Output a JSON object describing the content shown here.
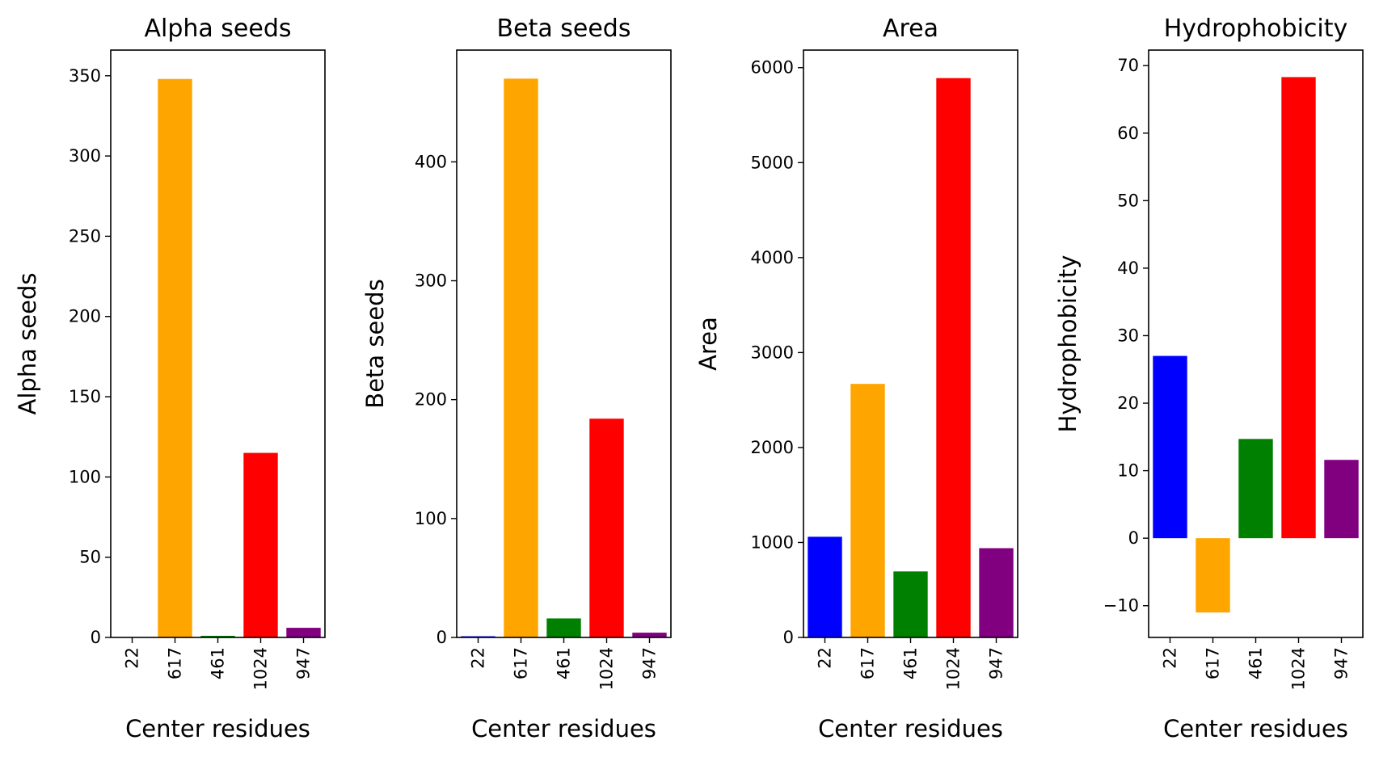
{
  "colors": {
    "bar_colors": [
      "#0000ff",
      "#ffa500",
      "#008000",
      "#ff0000",
      "#800080"
    ],
    "axes": "#000000",
    "background": "#ffffff"
  },
  "chart_data": [
    {
      "type": "bar",
      "title": "Alpha seeds",
      "xlabel": "Center residues",
      "ylabel": "Alpha seeds",
      "categories": [
        "22",
        "617",
        "461",
        "1024",
        "947"
      ],
      "values": [
        0,
        348,
        1,
        115,
        6
      ],
      "ylim": [
        0,
        366
      ],
      "yticks": [
        0,
        50,
        100,
        150,
        200,
        250,
        300,
        350
      ],
      "ytick_labels": [
        "0",
        "50",
        "100",
        "150",
        "200",
        "250",
        "300",
        "350"
      ],
      "grid": false,
      "legend": "none"
    },
    {
      "type": "bar",
      "title": "Beta seeds",
      "xlabel": "Center residues",
      "ylabel": "Beta seeds",
      "categories": [
        "22",
        "617",
        "461",
        "1024",
        "947"
      ],
      "values": [
        1,
        470,
        16,
        184,
        4
      ],
      "ylim": [
        0,
        494
      ],
      "yticks": [
        0,
        100,
        200,
        300,
        400
      ],
      "ytick_labels": [
        "0",
        "100",
        "200",
        "300",
        "400"
      ],
      "grid": false,
      "legend": "none"
    },
    {
      "type": "bar",
      "title": "Area",
      "xlabel": "Center residues",
      "ylabel": "Area",
      "categories": [
        "22",
        "617",
        "461",
        "1024",
        "947"
      ],
      "values": [
        1060,
        2670,
        695,
        5890,
        940
      ],
      "ylim": [
        0,
        6185
      ],
      "yticks": [
        0,
        1000,
        2000,
        3000,
        4000,
        5000,
        6000
      ],
      "ytick_labels": [
        "0",
        "1000",
        "2000",
        "3000",
        "4000",
        "5000",
        "6000"
      ],
      "grid": false,
      "legend": "none"
    },
    {
      "type": "bar",
      "title": "Hydrophobicity",
      "xlabel": "Center residues",
      "ylabel": "Hydrophobicity",
      "categories": [
        "22",
        "617",
        "461",
        "1024",
        "947"
      ],
      "values": [
        27,
        -11,
        14.7,
        68.3,
        11.6
      ],
      "ylim": [
        -14.7,
        72.3
      ],
      "yticks": [
        -10,
        0,
        10,
        20,
        30,
        40,
        50,
        60,
        70
      ],
      "ytick_labels": [
        "−10",
        "0",
        "10",
        "20",
        "30",
        "40",
        "50",
        "60",
        "70"
      ],
      "grid": false,
      "legend": "none"
    }
  ]
}
